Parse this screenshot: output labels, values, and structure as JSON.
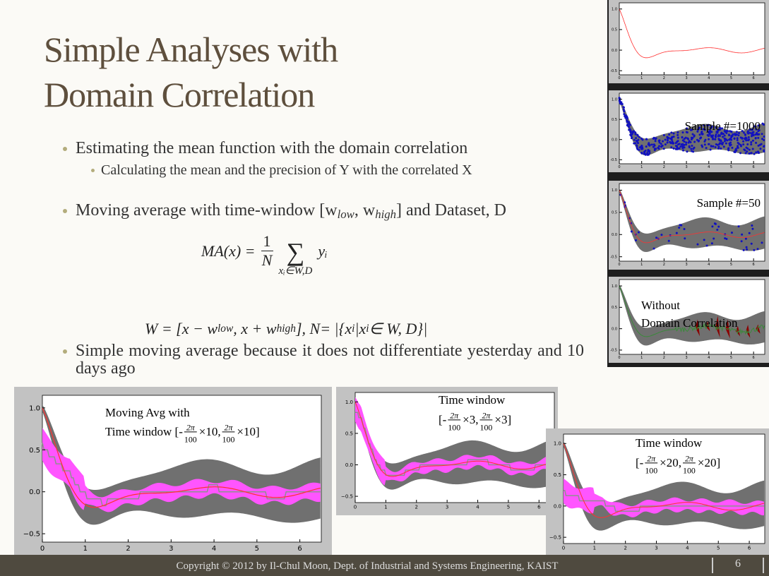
{
  "title": [
    "Simple Analyses with",
    "Domain Correlation"
  ],
  "bullets": [
    [
      "Estimating the mean function with the domain correlation"
    ],
    [
      "Moving average with time-window [w",
      "low",
      ", w",
      "high",
      "] and Dataset, D"
    ],
    [
      "Simple moving average because it does not differentiate yesterday and 10 days ago"
    ]
  ],
  "sub_bullets": [
    [
      "Calculating the mean and the precision of Y with the correlated X"
    ]
  ],
  "formula_ma": {
    "lhs": "MA(x) =",
    "num": "1",
    "den": "N",
    "sum": "∑",
    "range": "xᵢ∈W,D",
    "term": "yᵢ"
  },
  "formula_w": [
    "W = [x − w",
    "low",
    ", x + w",
    "high",
    "], N= |{x",
    "i",
    "|x",
    "i",
    " ∈ W, D}|"
  ],
  "side_panels": [
    {
      "yticks": [
        "1.0",
        "0.5",
        "0.0",
        "-0.5"
      ],
      "xticks": [
        "0",
        "1",
        "2",
        "3",
        "4",
        "5",
        "6"
      ]
    },
    {
      "label": [
        "Sample #=1000"
      ],
      "yticks": [
        "1.0",
        "0.5",
        "0.0",
        "-0.5"
      ],
      "xticks": [
        "0",
        "1",
        "2",
        "3",
        "4",
        "5",
        "6"
      ]
    },
    {
      "label": [
        "Sample #=50"
      ],
      "yticks": [
        "1.0",
        "0.5",
        "0.0",
        "-0.5"
      ],
      "xticks": [
        "0",
        "1",
        "2",
        "3",
        "4",
        "5",
        "6"
      ]
    },
    {
      "label": [
        "Without",
        "Domain Correlation"
      ],
      "yticks": [
        "1.0",
        "0.5",
        "0.0",
        "-0.5"
      ],
      "xticks": [
        "0",
        "1",
        "2",
        "3",
        "4",
        "5",
        "6"
      ]
    }
  ],
  "figures": [
    {
      "label": [
        "Moving Avg with",
        [
          "Time window [-",
          {
            "num": "2π",
            "den": "100"
          },
          "×10,",
          {
            "num": "2π",
            "den": "100"
          },
          "×10]"
        ]
      ],
      "yticks": [
        "1.0",
        "0.5",
        "0.0",
        "−0.5"
      ],
      "xticks": [
        "0",
        "1",
        "2",
        "3",
        "4",
        "5",
        "6"
      ]
    },
    {
      "label": [
        "Time window",
        [
          "[-",
          {
            "num": "2π",
            "den": "100"
          },
          "×3, ",
          {
            "num": "2π",
            "den": "100"
          },
          "×3]"
        ]
      ],
      "yticks": [
        "1.0",
        "0.5",
        "0.0",
        "−0.5"
      ],
      "xticks": [
        "0",
        "1",
        "2",
        "3",
        "4",
        "5",
        "6"
      ]
    },
    {
      "label": [
        "Time window",
        [
          "[-",
          {
            "num": "2π",
            "den": "100"
          },
          "×20, ",
          {
            "num": "2π",
            "den": "100"
          },
          "×20]"
        ]
      ],
      "yticks": [
        "1.0",
        "0.5",
        "0.0",
        "−0.5"
      ],
      "xticks": [
        "0",
        "1",
        "2",
        "3",
        "4",
        "5",
        "6"
      ]
    }
  ],
  "footer": {
    "copyright": "Copyright © 2012 by Il-Chul Moon, Dept. of Industrial and Systems Engineering, KAIST",
    "page": "6"
  }
}
